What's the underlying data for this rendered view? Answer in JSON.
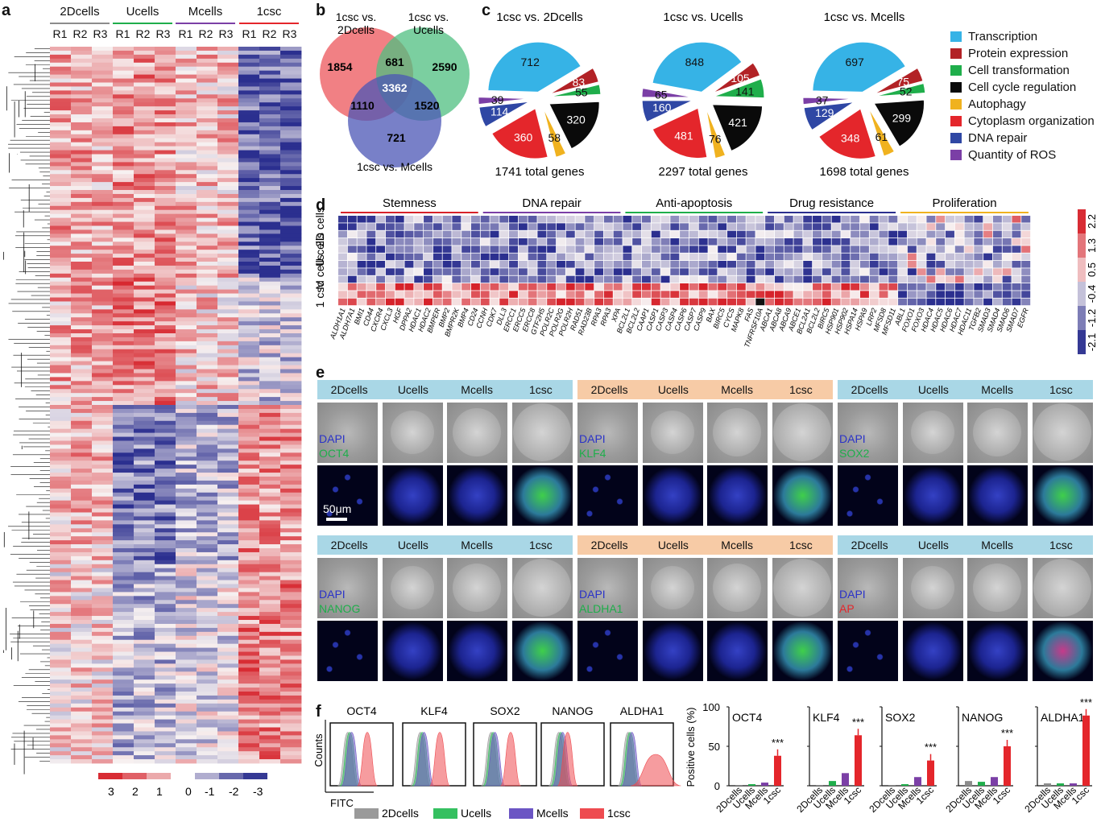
{
  "panels": {
    "a": "a",
    "b": "b",
    "c": "c",
    "d": "d",
    "e": "e",
    "f": "f"
  },
  "colors": {
    "twoD": "#8c8c8c",
    "U": "#1fae4b",
    "M": "#7b3fa6",
    "csc": "#e4262b",
    "blue": "#2b2f8f",
    "red": "#d7222a"
  },
  "panel_a": {
    "groups": [
      {
        "label": "2Dcells"
      },
      {
        "label": "Ucells"
      },
      {
        "label": "Mcells"
      },
      {
        "label": "1csc"
      }
    ],
    "reps": [
      "R1",
      "R2",
      "R3"
    ],
    "scale": {
      "labels": [
        "3",
        "2",
        "1",
        "0",
        "-1",
        "-2",
        "-3"
      ]
    }
  },
  "panel_b": {
    "sets": [
      "1csc vs. 2Dcells",
      "1csc vs. Ucells",
      "1csc vs. Mcells"
    ],
    "regions": {
      "a_only": "1854",
      "b_only": "2590",
      "c_only": "721",
      "ab": "681",
      "ac": "1110",
      "bc": "1520",
      "abc": "3362"
    }
  },
  "panel_c": {
    "pies": [
      {
        "title": "1csc vs. 2Dcells",
        "total": "1741 total genes",
        "values": [
          712,
          83,
          55,
          320,
          58,
          360,
          114,
          39
        ]
      },
      {
        "title": "1csc vs. Ucells",
        "total": "2297 total genes",
        "values": [
          848,
          105,
          141,
          421,
          76,
          481,
          160,
          65
        ]
      },
      {
        "title": "1csc vs. Mcells",
        "total": "1698 total genes",
        "values": [
          697,
          75,
          52,
          299,
          61,
          348,
          129,
          37
        ]
      }
    ],
    "legend": [
      {
        "label": "Transcription",
        "color": "#36b3e6"
      },
      {
        "label": "Protein expression",
        "color": "#b22226"
      },
      {
        "label": "Cell transformation",
        "color": "#1fae4b"
      },
      {
        "label": "Cell cycle regulation",
        "color": "#0a0a0a"
      },
      {
        "label": "Autophagy",
        "color": "#f0b21f"
      },
      {
        "label": "Cytoplasm organization",
        "color": "#e4262b"
      },
      {
        "label": "DNA repair",
        "color": "#2f47a4"
      },
      {
        "label": "Quantity of ROS",
        "color": "#7b3fa6"
      }
    ]
  },
  "panel_d": {
    "categories": [
      "Stemness",
      "DNA repair",
      "Anti-apoptosis",
      "Drug resistance",
      "Proliferation"
    ],
    "rowgroups": [
      "2D cells",
      "U cells",
      "M cells",
      "1 csc"
    ],
    "scale": [
      "2.2",
      "1.3",
      "0.5",
      "-0.4",
      "-1.2",
      "-2.1"
    ],
    "genes": [
      "ALDH1A1",
      "ALDH7A1",
      "BMI1",
      "CD44",
      "CXCR4",
      "CXCL3",
      "HGF",
      "DPPA2",
      "HDAC1",
      "HDAC2",
      "BMPER",
      "BMP2",
      "BMPR2K",
      "BMP4",
      "CD24",
      "CCNH",
      "CDK7",
      "DLL3",
      "ERCC1",
      "ERCC5",
      "ERCC8",
      "GTF2H5",
      "POLR2C",
      "POLR2G",
      "POLR2H",
      "RAD51",
      "RAD23B",
      "RPA3",
      "RPA3",
      "XPA",
      "BCL2L1",
      "BCL2L2",
      "CAAP1",
      "CASP1",
      "CASP3",
      "CASP4",
      "CASP6",
      "CASP7",
      "CASP9",
      "BAX",
      "BIRC5",
      "CYCS",
      "MAPK8",
      "FAS",
      "TNFRSF10A",
      "ABCA1",
      "ABCA8",
      "ABCA9",
      "ABCE1",
      "BCL2A1",
      "BCL2L2",
      "BIRC5",
      "HSP901",
      "HSP902",
      "HSPA14",
      "HSPA9",
      "LRP2",
      "MFSD8",
      "MFSD11",
      "ABL1",
      "FOXO1",
      "FOXO3",
      "HDAC4",
      "HDAC5",
      "HDAC6",
      "HDAC7",
      "HDAC11",
      "TGFB2",
      "SMAD3",
      "SMAD4",
      "SMAD6",
      "SMAD7",
      "EGFR"
    ]
  },
  "panel_e": {
    "headers": [
      "2Dcells",
      "Ucells",
      "Mcells",
      "1csc"
    ],
    "blocks": [
      {
        "stain1": "DAPI",
        "stain2": "OCT4"
      },
      {
        "stain1": "DAPI",
        "stain2": "KLF4"
      },
      {
        "stain1": "DAPI",
        "stain2": "SOX2"
      },
      {
        "stain1": "DAPI",
        "stain2": "NANOG"
      },
      {
        "stain1": "DAPI",
        "stain2": "ALDHA1"
      },
      {
        "stain1": "DAPI",
        "stain2": "AP"
      }
    ],
    "scalebar": "50μm"
  },
  "panel_f": {
    "markers": [
      "OCT4",
      "KLF4",
      "SOX2",
      "NANOG",
      "ALDHA1"
    ],
    "hist_ylabel": "Counts",
    "hist_xlabel": "FITC",
    "legend": [
      "2Dcells",
      "Ucells",
      "Mcells",
      "1csc"
    ],
    "bar_ylabel": "Positive cells (%)",
    "bar_yticks": [
      "100",
      "50",
      "0"
    ],
    "bar_categories": [
      "2Dcells",
      "Ucells",
      "Mcells",
      "1csc"
    ],
    "sig": "***"
  },
  "chart_data": [
    {
      "type": "bar",
      "title": "OCT4",
      "categories": [
        "2Dcells",
        "Ucells",
        "Mcells",
        "1csc"
      ],
      "values": [
        1,
        2,
        4,
        38
      ],
      "ylabel": "Positive cells (%)",
      "ylim": [
        0,
        100
      ]
    },
    {
      "type": "bar",
      "title": "KLF4",
      "categories": [
        "2Dcells",
        "Ucells",
        "Mcells",
        "1csc"
      ],
      "values": [
        1,
        6,
        16,
        64
      ],
      "ylabel": "Positive cells (%)",
      "ylim": [
        0,
        100
      ]
    },
    {
      "type": "bar",
      "title": "SOX2",
      "categories": [
        "2Dcells",
        "Ucells",
        "Mcells",
        "1csc"
      ],
      "values": [
        1,
        2,
        11,
        32
      ],
      "ylabel": "Positive cells (%)",
      "ylim": [
        0,
        100
      ]
    },
    {
      "type": "bar",
      "title": "NANOG",
      "categories": [
        "2Dcells",
        "Ucells",
        "Mcells",
        "1csc"
      ],
      "values": [
        6,
        5,
        11,
        50
      ],
      "ylabel": "Positive cells (%)",
      "ylim": [
        0,
        100
      ]
    },
    {
      "type": "bar",
      "title": "ALDHA1",
      "categories": [
        "2Dcells",
        "Ucells",
        "Mcells",
        "1csc"
      ],
      "values": [
        3,
        3,
        3,
        89
      ],
      "ylabel": "Positive cells (%)",
      "ylim": [
        0,
        100
      ]
    }
  ]
}
